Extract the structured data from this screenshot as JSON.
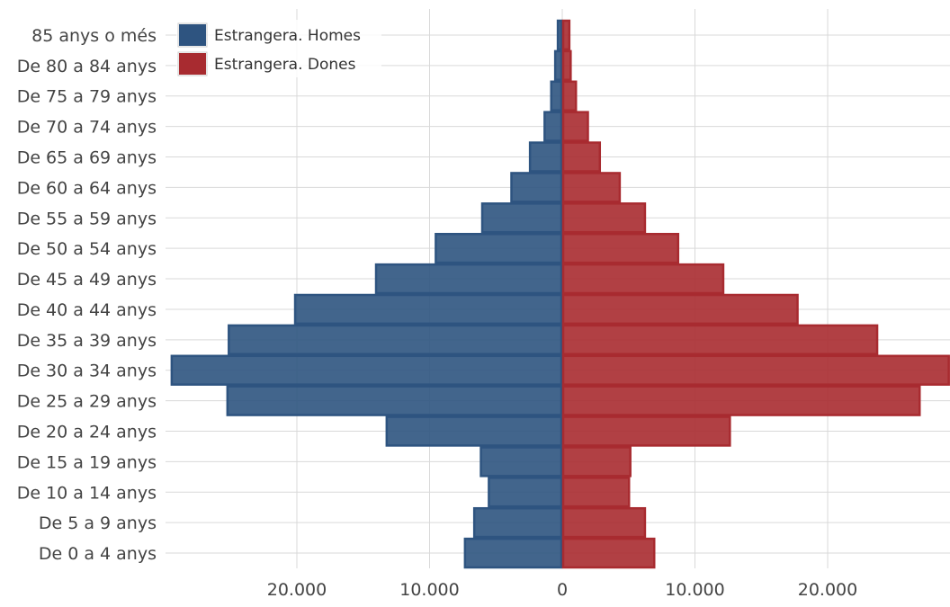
{
  "chart_data": {
    "type": "bar",
    "orientation": "horizontal",
    "layout": "population-pyramid",
    "title": "",
    "xlabel": "",
    "ylabel": "",
    "categories": [
      "De 0 a 4 anys",
      "De 5 a 9 anys",
      "De 10 a 14 anys",
      "De 15 a 19 anys",
      "De 20 a 24 anys",
      "De 25 a 29 anys",
      "De 30 a 34 anys",
      "De 35 a 39 anys",
      "De 40 a 44 anys",
      "De 45 a 49 anys",
      "De 50 a 54 anys",
      "De 55 a 59 anys",
      "De 60 a 64 anys",
      "De 65 a 69 anys",
      "De 70 a 74 anys",
      "De 75 a 79 anys",
      "De 80 a 84 anys",
      "85 anys o més"
    ],
    "series": [
      {
        "name": "Estrangera. Homes",
        "color": "#2e5480",
        "side": "left",
        "values": [
          7400,
          6700,
          5600,
          6200,
          13300,
          25300,
          29500,
          25200,
          20200,
          14100,
          9600,
          6100,
          3900,
          2500,
          1400,
          900,
          600,
          400
        ]
      },
      {
        "name": "Estrangera. Dones",
        "color": "#a82b30",
        "side": "right",
        "values": [
          7000,
          6300,
          5100,
          5200,
          12700,
          27000,
          29200,
          23800,
          17800,
          12200,
          8800,
          6300,
          4400,
          2900,
          2000,
          1100,
          700,
          600
        ]
      }
    ],
    "xlim": [
      -29800,
      29300
    ],
    "xticks": [
      -20000,
      -10000,
      0,
      10000,
      20000
    ],
    "xtick_labels": [
      "20.000",
      "10.000",
      "0",
      "10.000",
      "20.000"
    ],
    "grid": true,
    "legend_position": "top-left"
  }
}
